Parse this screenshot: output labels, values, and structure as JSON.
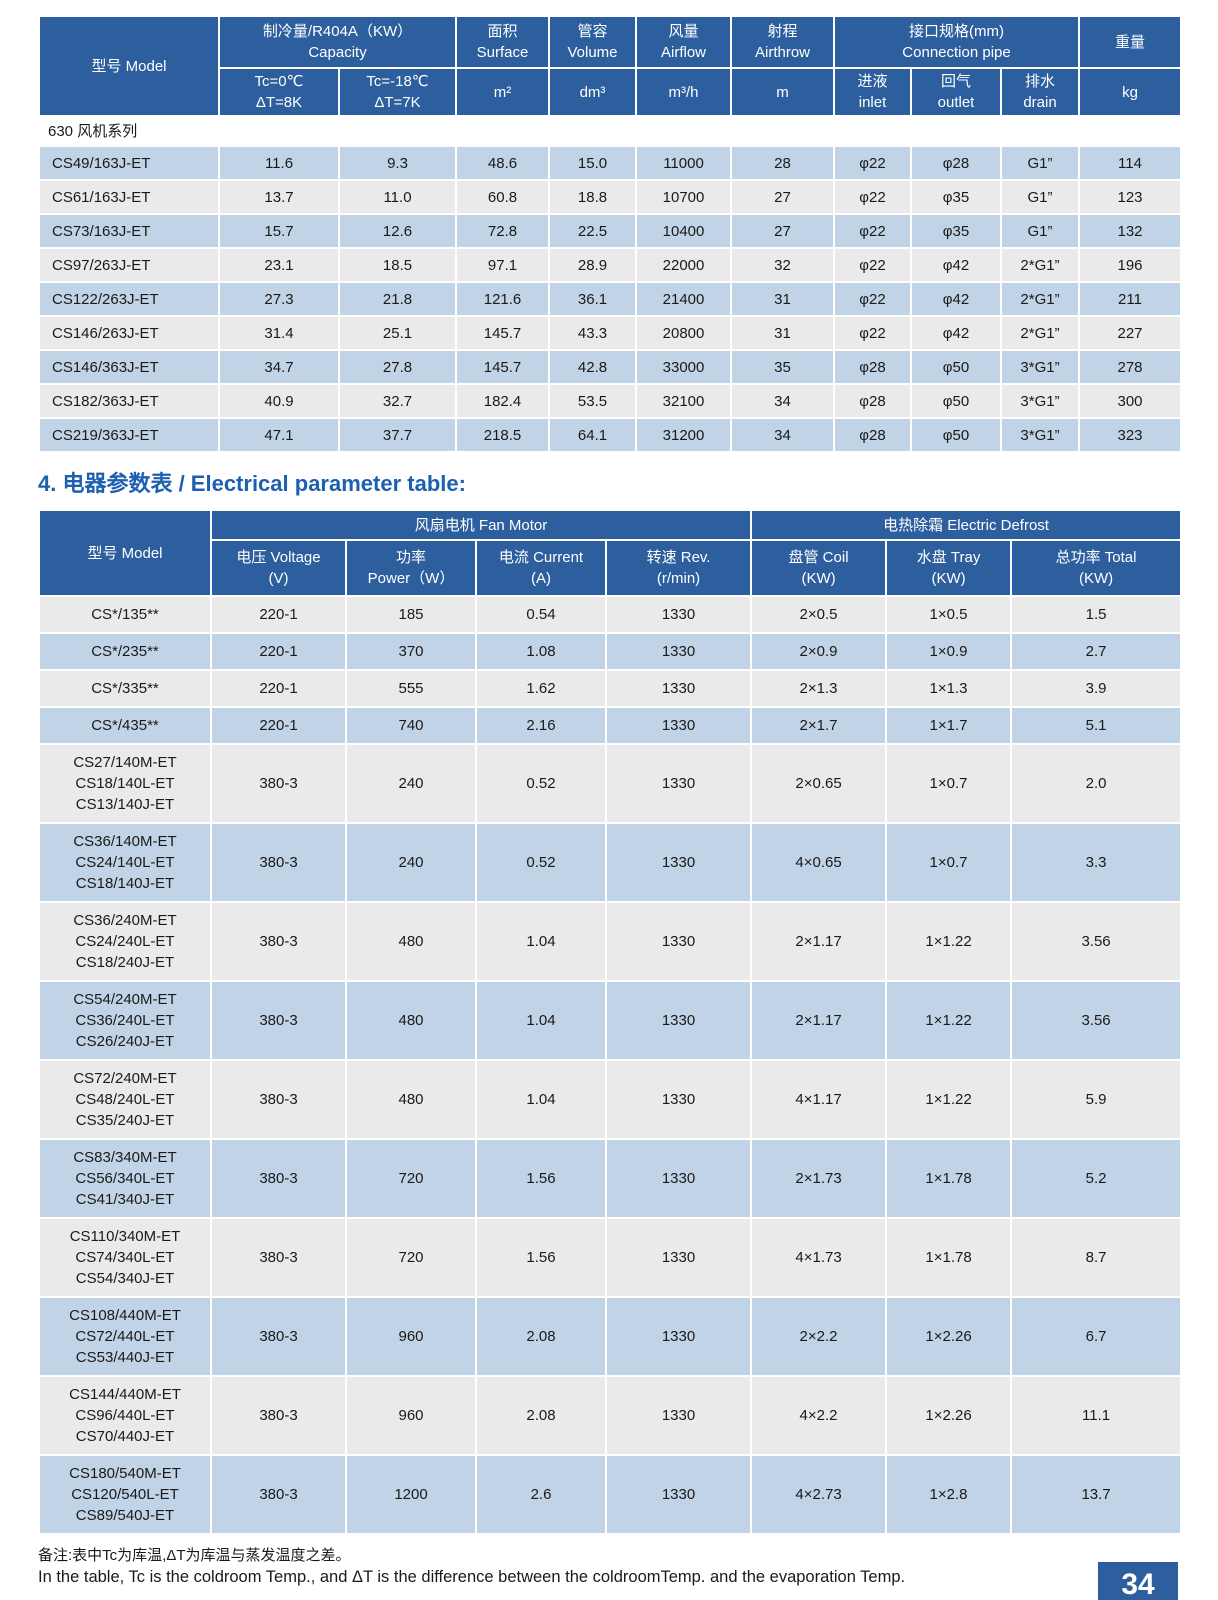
{
  "page_number": "34",
  "section_heading": "4. 电器参数表 / Electrical parameter table:",
  "notes": {
    "zh": "备注:表中Tc为库温,ΔT为库温与蒸发温度之差。",
    "en": "In the table, Tc is the coldroom Temp., and ΔT is the difference between the coldroomTemp. and the evaporation Temp."
  },
  "colors": {
    "header_blue": "#2d5f9f",
    "row_blue": "#c1d3e6",
    "row_gray": "#eaeaea",
    "heading_text": "#1d5fb0"
  },
  "spec_table": {
    "header": {
      "model": "型号 Model",
      "capacity_group": "制冷量/R404A（KW）\nCapacity",
      "cap_sub_1": "Tc=0℃\nΔT=8K",
      "cap_sub_2": "Tc=-18℃\nΔT=7K",
      "surface": "面积\nSurface",
      "surface_unit": "m²",
      "volume": "管容\nVolume",
      "volume_unit": "dm³",
      "airflow": "风量\nAirflow",
      "airflow_unit": "m³/h",
      "airthrow": "射程\nAirthrow",
      "airthrow_unit": "m",
      "pipe_group": "接口规格(mm)\nConnection pipe",
      "inlet": "进液\ninlet",
      "outlet": "回气\noutlet",
      "drain": "排水\ndrain",
      "weight": "重量",
      "weight_unit": "kg"
    },
    "section_label": "630 风机系列",
    "rows": [
      [
        "CS49/163J-ET",
        "11.6",
        "9.3",
        "48.6",
        "15.0",
        "11000",
        "28",
        "φ22",
        "φ28",
        "G1”",
        "114"
      ],
      [
        "CS61/163J-ET",
        "13.7",
        "11.0",
        "60.8",
        "18.8",
        "10700",
        "27",
        "φ22",
        "φ35",
        "G1”",
        "123"
      ],
      [
        "CS73/163J-ET",
        "15.7",
        "12.6",
        "72.8",
        "22.5",
        "10400",
        "27",
        "φ22",
        "φ35",
        "G1”",
        "132"
      ],
      [
        "CS97/263J-ET",
        "23.1",
        "18.5",
        "97.1",
        "28.9",
        "22000",
        "32",
        "φ22",
        "φ42",
        "2*G1”",
        "196"
      ],
      [
        "CS122/263J-ET",
        "27.3",
        "21.8",
        "121.6",
        "36.1",
        "21400",
        "31",
        "φ22",
        "φ42",
        "2*G1”",
        "211"
      ],
      [
        "CS146/263J-ET",
        "31.4",
        "25.1",
        "145.7",
        "43.3",
        "20800",
        "31",
        "φ22",
        "φ42",
        "2*G1”",
        "227"
      ],
      [
        "CS146/363J-ET",
        "34.7",
        "27.8",
        "145.7",
        "42.8",
        "33000",
        "35",
        "φ28",
        "φ50",
        "3*G1”",
        "278"
      ],
      [
        "CS182/363J-ET",
        "40.9",
        "32.7",
        "182.4",
        "53.5",
        "32100",
        "34",
        "φ28",
        "φ50",
        "3*G1”",
        "300"
      ],
      [
        "CS219/363J-ET",
        "47.1",
        "37.7",
        "218.5",
        "64.1",
        "31200",
        "34",
        "φ28",
        "φ50",
        "3*G1”",
        "323"
      ]
    ]
  },
  "electrical_table": {
    "header": {
      "model": "型号 Model",
      "fan_group": "风扇电机  Fan Motor",
      "defrost_group": "电热除霜 Electric Defrost",
      "voltage": "电压 Voltage\n(V)",
      "power": "功率\nPower（W）",
      "current": "电流 Current\n(A)",
      "rev": "转速 Rev.\n(r/min)",
      "coil": "盘管 Coil\n(KW)",
      "tray": "水盘 Tray\n(KW)",
      "total": "总功率 Total\n(KW)"
    },
    "rows": [
      [
        "CS*/135**",
        "220-1",
        "185",
        "0.54",
        "1330",
        "2×0.5",
        "1×0.5",
        "1.5"
      ],
      [
        "CS*/235**",
        "220-1",
        "370",
        "1.08",
        "1330",
        "2×0.9",
        "1×0.9",
        "2.7"
      ],
      [
        "CS*/335**",
        "220-1",
        "555",
        "1.62",
        "1330",
        "2×1.3",
        "1×1.3",
        "3.9"
      ],
      [
        "CS*/435**",
        "220-1",
        "740",
        "2.16",
        "1330",
        "2×1.7",
        "1×1.7",
        "5.1"
      ],
      [
        "CS27/140M-ET\nCS18/140L-ET\nCS13/140J-ET",
        "380-3",
        "240",
        "0.52",
        "1330",
        "2×0.65",
        "1×0.7",
        "2.0"
      ],
      [
        "CS36/140M-ET\nCS24/140L-ET\nCS18/140J-ET",
        "380-3",
        "240",
        "0.52",
        "1330",
        "4×0.65",
        "1×0.7",
        "3.3"
      ],
      [
        "CS36/240M-ET\nCS24/240L-ET\nCS18/240J-ET",
        "380-3",
        "480",
        "1.04",
        "1330",
        "2×1.17",
        "1×1.22",
        "3.56"
      ],
      [
        "CS54/240M-ET\nCS36/240L-ET\nCS26/240J-ET",
        "380-3",
        "480",
        "1.04",
        "1330",
        "2×1.17",
        "1×1.22",
        "3.56"
      ],
      [
        "CS72/240M-ET\nCS48/240L-ET\nCS35/240J-ET",
        "380-3",
        "480",
        "1.04",
        "1330",
        "4×1.17",
        "1×1.22",
        "5.9"
      ],
      [
        "CS83/340M-ET\nCS56/340L-ET\nCS41/340J-ET",
        "380-3",
        "720",
        "1.56",
        "1330",
        "2×1.73",
        "1×1.78",
        "5.2"
      ],
      [
        "CS110/340M-ET\nCS74/340L-ET\nCS54/340J-ET",
        "380-3",
        "720",
        "1.56",
        "1330",
        "4×1.73",
        "1×1.78",
        "8.7"
      ],
      [
        "CS108/440M-ET\nCS72/440L-ET\nCS53/440J-ET",
        "380-3",
        "960",
        "2.08",
        "1330",
        "2×2.2",
        "1×2.26",
        "6.7"
      ],
      [
        "CS144/440M-ET\nCS96/440L-ET\nCS70/440J-ET",
        "380-3",
        "960",
        "2.08",
        "1330",
        "4×2.2",
        "1×2.26",
        "11.1"
      ],
      [
        "CS180/540M-ET\nCS120/540L-ET\nCS89/540J-ET",
        "380-3",
        "1200",
        "2.6",
        "1330",
        "4×2.73",
        "1×2.8",
        "13.7"
      ]
    ]
  }
}
